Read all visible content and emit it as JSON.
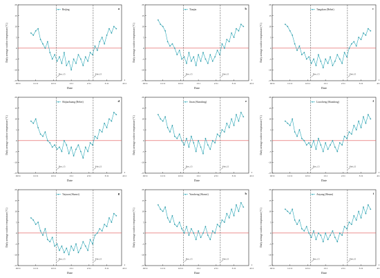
{
  "chart_data": [
    {
      "type": "line",
      "letter": "a",
      "title": "",
      "legend": "Beijing",
      "ylabel": "Daily average outdoor temperature (°C)",
      "xlabel": "Date",
      "xticks": [
        "10/11",
        "11/11",
        "12/11",
        "1/11",
        "2/11",
        "3/11",
        "4/11"
      ],
      "yticks": [
        -15,
        -10,
        -5,
        0,
        5,
        10,
        15,
        20
      ],
      "ylim": [
        -15,
        20
      ],
      "xlim_days": [
        0,
        175
      ],
      "vlines": [
        {
          "day": 65,
          "label": "Dec.15"
        },
        {
          "day": 127,
          "label": "Feb.15"
        }
      ],
      "series": [
        {
          "x_days": [
            22,
            26,
            30,
            34,
            38,
            42,
            46,
            50,
            54,
            58,
            62,
            66,
            70,
            74,
            78,
            82,
            86,
            90,
            94,
            98,
            102,
            106,
            110,
            114,
            118,
            122,
            126,
            130,
            134,
            138,
            142,
            146,
            150,
            154,
            158,
            162,
            166
          ],
          "y": [
            7,
            6,
            8,
            9,
            4,
            2,
            0,
            3,
            -2,
            -5,
            -3,
            -6,
            -4,
            -7,
            -2,
            -8,
            -6,
            -10,
            -5,
            -7,
            -3,
            -5,
            -8,
            -4,
            -6,
            -2,
            -3,
            1,
            -1,
            3,
            5,
            2,
            6,
            9,
            7,
            10,
            9
          ]
        }
      ]
    },
    {
      "type": "line",
      "letter": "b",
      "title": "",
      "legend": "Tianjin",
      "ylabel": "Daily average outdoor temperature (°C)",
      "xlabel": "Date",
      "xticks": [
        "10/11",
        "11/11",
        "12/11",
        "1/11",
        "2/11",
        "3/11",
        "4/11"
      ],
      "yticks": [
        -15,
        -10,
        -5,
        0,
        5,
        10,
        15,
        20
      ],
      "ylim": [
        -15,
        20
      ],
      "xlim_days": [
        0,
        175
      ],
      "vlines": [
        {
          "day": 65,
          "label": "Dec.15"
        },
        {
          "day": 127,
          "label": "Feb.15"
        }
      ],
      "series": [
        {
          "x_days": [
            22,
            26,
            30,
            34,
            38,
            42,
            46,
            50,
            54,
            58,
            62,
            66,
            70,
            74,
            78,
            82,
            86,
            90,
            94,
            98,
            102,
            106,
            110,
            114,
            118,
            122,
            126,
            130,
            134,
            138,
            142,
            146,
            150,
            154,
            158,
            162,
            166
          ],
          "y": [
            13,
            11,
            10,
            8,
            3,
            1,
            2,
            0,
            -3,
            -1,
            -5,
            -4,
            -7,
            -2,
            -6,
            -4,
            -8,
            -3,
            -6,
            -2,
            -5,
            -7,
            -3,
            -6,
            -4,
            -1,
            -3,
            2,
            0,
            4,
            3,
            7,
            5,
            9,
            8,
            11,
            10
          ]
        }
      ]
    },
    {
      "type": "line",
      "letter": "c",
      "title": "",
      "legend": "Tangshan (Hebei)",
      "ylabel": "Daily average outdoor temperature (°C)",
      "xlabel": "Date",
      "xticks": [
        "10/11",
        "11/11",
        "12/11",
        "1/11",
        "2/11",
        "3/11",
        "4/11"
      ],
      "yticks": [
        -15,
        -10,
        -5,
        0,
        5,
        10,
        15,
        20
      ],
      "ylim": [
        -15,
        20
      ],
      "xlim_days": [
        0,
        175
      ],
      "vlines": [
        {
          "day": 65,
          "label": "Dec.15"
        },
        {
          "day": 127,
          "label": "Feb.15"
        }
      ],
      "series": [
        {
          "x_days": [
            22,
            26,
            30,
            34,
            38,
            42,
            46,
            50,
            54,
            58,
            62,
            66,
            70,
            74,
            78,
            82,
            86,
            90,
            94,
            98,
            102,
            106,
            110,
            114,
            118,
            122,
            126,
            130,
            134,
            138,
            142,
            146,
            150,
            154,
            158,
            162,
            166
          ],
          "y": [
            11,
            10,
            8,
            6,
            2,
            -1,
            1,
            -3,
            -2,
            -5,
            -4,
            -7,
            -5,
            -8,
            -3,
            -6,
            -9,
            -5,
            -7,
            -4,
            -8,
            -6,
            -3,
            -5,
            -7,
            -2,
            -4,
            0,
            2,
            3,
            1,
            5,
            4,
            7,
            6,
            9,
            8
          ]
        }
      ]
    },
    {
      "type": "line",
      "letter": "d",
      "title": "",
      "legend": "Shijiazhuang (Hebei)",
      "ylabel": "Daily average outdoor temperature (°C)",
      "xlabel": "Date",
      "xticks": [
        "10/11",
        "11/11",
        "12/11",
        "1/11",
        "2/11",
        "3/11",
        "4/11"
      ],
      "yticks": [
        -15,
        -10,
        -5,
        0,
        5,
        10,
        15,
        20
      ],
      "ylim": [
        -15,
        20
      ],
      "xlim_days": [
        0,
        175
      ],
      "vlines": [
        {
          "day": 65,
          "label": "Dec.15"
        },
        {
          "day": 127,
          "label": "Feb.15"
        }
      ],
      "series": [
        {
          "x_days": [
            22,
            26,
            30,
            34,
            38,
            42,
            46,
            50,
            54,
            58,
            62,
            66,
            70,
            74,
            78,
            82,
            86,
            90,
            94,
            98,
            102,
            106,
            110,
            114,
            118,
            122,
            126,
            130,
            134,
            138,
            142,
            146,
            150,
            154,
            158,
            162,
            166
          ],
          "y": [
            9,
            8,
            10,
            6,
            3,
            2,
            4,
            0,
            -1,
            -3,
            -2,
            -4,
            -3,
            -5,
            0,
            -2,
            -6,
            -3,
            -7,
            -4,
            -2,
            -5,
            -8,
            -3,
            -5,
            -1,
            -2,
            2,
            1,
            5,
            4,
            8,
            6,
            10,
            9,
            13,
            12
          ]
        }
      ]
    },
    {
      "type": "line",
      "letter": "e",
      "title": "",
      "legend": "Jinan (Shandong)",
      "ylabel": "Daily average outdoor temperature (°C)",
      "xlabel": "Date",
      "xticks": [
        "10/11",
        "11/11",
        "12/11",
        "1/11",
        "2/11",
        "3/11",
        "4/11"
      ],
      "yticks": [
        -15,
        -10,
        -5,
        0,
        5,
        10,
        15,
        20
      ],
      "ylim": [
        -15,
        20
      ],
      "xlim_days": [
        0,
        175
      ],
      "vlines": [
        {
          "day": 65,
          "label": "Dec.15"
        },
        {
          "day": 127,
          "label": "Feb.15"
        }
      ],
      "series": [
        {
          "x_days": [
            22,
            26,
            30,
            34,
            38,
            42,
            46,
            50,
            54,
            58,
            62,
            66,
            70,
            74,
            78,
            82,
            86,
            90,
            94,
            98,
            102,
            106,
            110,
            114,
            118,
            122,
            126,
            130,
            134,
            138,
            142,
            146,
            150,
            154,
            158,
            162,
            166
          ],
          "y": [
            12,
            10,
            9,
            11,
            6,
            4,
            7,
            2,
            1,
            3,
            0,
            -2,
            1,
            -3,
            2,
            -1,
            -5,
            0,
            -3,
            -6,
            1,
            -2,
            -4,
            0,
            -1,
            3,
            2,
            5,
            4,
            8,
            6,
            10,
            7,
            12,
            9,
            13,
            11
          ]
        }
      ]
    },
    {
      "type": "line",
      "letter": "f",
      "title": "",
      "legend": "Liaocheng (Shandong)",
      "ylabel": "Daily average outdoor temperature (°C)",
      "xlabel": "Date",
      "xticks": [
        "10/11",
        "11/11",
        "12/11",
        "1/11",
        "2/11",
        "3/11",
        "4/11"
      ],
      "yticks": [
        -15,
        -10,
        -5,
        0,
        5,
        10,
        15,
        20
      ],
      "ylim": [
        -15,
        20
      ],
      "xlim_days": [
        0,
        175
      ],
      "vlines": [
        {
          "day": 65,
          "label": "Dec.15"
        },
        {
          "day": 127,
          "label": "Feb.15"
        }
      ],
      "series": [
        {
          "x_days": [
            22,
            26,
            30,
            34,
            38,
            42,
            46,
            50,
            54,
            58,
            62,
            66,
            70,
            74,
            78,
            82,
            86,
            90,
            94,
            98,
            102,
            106,
            110,
            114,
            118,
            122,
            126,
            130,
            134,
            138,
            142,
            146,
            150,
            154,
            158,
            162,
            166
          ],
          "y": [
            9,
            8,
            7,
            10,
            4,
            2,
            5,
            1,
            0,
            -2,
            -1,
            -3,
            0,
            -4,
            1,
            -2,
            -5,
            -1,
            -4,
            -2,
            0,
            -3,
            -5,
            -1,
            -2,
            2,
            1,
            4,
            3,
            7,
            5,
            9,
            6,
            11,
            8,
            12,
            10
          ]
        }
      ]
    },
    {
      "type": "line",
      "letter": "g",
      "title": "",
      "legend": "Taiyuan (Shanxi)",
      "ylabel": "Daily average outdoor temperature (°C)",
      "xlabel": "Date",
      "xticks": [
        "10/11",
        "11/11",
        "12/11",
        "1/11",
        "2/11",
        "3/11",
        "4/11"
      ],
      "yticks": [
        -15,
        -10,
        -5,
        0,
        5,
        10,
        15,
        20
      ],
      "ylim": [
        -15,
        20
      ],
      "xlim_days": [
        0,
        175
      ],
      "vlines": [
        {
          "day": 65,
          "label": "Dec.15"
        },
        {
          "day": 127,
          "label": "Feb.15"
        }
      ],
      "series": [
        {
          "x_days": [
            22,
            26,
            30,
            34,
            38,
            42,
            46,
            50,
            54,
            58,
            62,
            66,
            70,
            74,
            78,
            82,
            86,
            90,
            94,
            98,
            102,
            106,
            110,
            114,
            118,
            122,
            126,
            130,
            134,
            138,
            142,
            146,
            150,
            154,
            158,
            162,
            166
          ],
          "y": [
            7,
            6,
            4,
            5,
            1,
            -1,
            2,
            -3,
            -4,
            -2,
            -6,
            -5,
            -8,
            -6,
            -9,
            -7,
            -10,
            -6,
            -8,
            -5,
            -9,
            -7,
            -4,
            -6,
            -8,
            -3,
            -5,
            -1,
            0,
            2,
            1,
            4,
            3,
            7,
            5,
            9,
            8
          ]
        }
      ]
    },
    {
      "type": "line",
      "letter": "h",
      "title": "",
      "legend": "Yuncheng (Shanxi)",
      "ylabel": "Daily average outdoor temperature (°C)",
      "xlabel": "Date",
      "xticks": [
        "10/11",
        "11/11",
        "12/11",
        "1/11",
        "2/11",
        "3/11",
        "4/11"
      ],
      "yticks": [
        -15,
        -10,
        -5,
        0,
        5,
        10,
        15,
        20
      ],
      "ylim": [
        -15,
        20
      ],
      "xlim_days": [
        0,
        175
      ],
      "vlines": [
        {
          "day": 65,
          "label": "Dec.15"
        },
        {
          "day": 127,
          "label": "Feb.15"
        }
      ],
      "series": [
        {
          "x_days": [
            22,
            26,
            30,
            34,
            38,
            42,
            46,
            50,
            54,
            58,
            62,
            66,
            70,
            74,
            78,
            82,
            86,
            90,
            94,
            98,
            102,
            106,
            110,
            114,
            118,
            122,
            126,
            130,
            134,
            138,
            142,
            146,
            150,
            154,
            158,
            162,
            166
          ],
          "y": [
            13,
            11,
            10,
            12,
            7,
            5,
            8,
            4,
            3,
            5,
            2,
            0,
            3,
            -1,
            2,
            0,
            -3,
            1,
            -2,
            0,
            3,
            -1,
            -3,
            1,
            0,
            4,
            3,
            6,
            5,
            9,
            7,
            11,
            8,
            13,
            10,
            14,
            12
          ]
        }
      ]
    },
    {
      "type": "line",
      "letter": "i",
      "title": "",
      "legend": "Anyang (Henan)",
      "ylabel": "Daily average outdoor temperature (°C)",
      "xlabel": "Date",
      "xticks": [
        "10/11",
        "11/11",
        "12/11",
        "1/11",
        "2/11",
        "3/11",
        "4/11"
      ],
      "yticks": [
        -15,
        -10,
        -5,
        0,
        5,
        10,
        15,
        20
      ],
      "ylim": [
        -15,
        20
      ],
      "xlim_days": [
        0,
        175
      ],
      "vlines": [
        {
          "day": 65,
          "label": "Dec.15"
        },
        {
          "day": 127,
          "label": "Feb.15"
        }
      ],
      "series": [
        {
          "x_days": [
            22,
            26,
            30,
            34,
            38,
            42,
            46,
            50,
            54,
            58,
            62,
            66,
            70,
            74,
            78,
            82,
            86,
            90,
            94,
            98,
            102,
            106,
            110,
            114,
            118,
            122,
            126,
            130,
            134,
            138,
            142,
            146,
            150,
            154,
            158,
            162,
            166
          ],
          "y": [
            11,
            10,
            9,
            11,
            6,
            4,
            6,
            2,
            1,
            3,
            0,
            -2,
            1,
            -3,
            0,
            -1,
            -4,
            0,
            -3,
            -1,
            1,
            -2,
            -4,
            0,
            -1,
            3,
            2,
            5,
            4,
            8,
            6,
            10,
            7,
            12,
            9,
            13,
            11
          ]
        }
      ]
    }
  ],
  "colors": {
    "series": "#2aa8b8",
    "zero_line": "#e05050",
    "axis": "#222222",
    "vline": "#555555"
  }
}
